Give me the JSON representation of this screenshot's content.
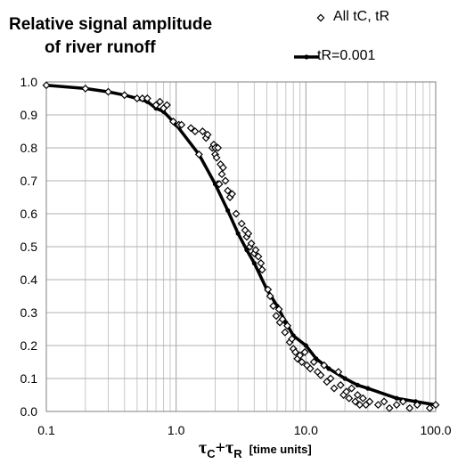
{
  "chart_data": {
    "type": "scatter",
    "title_lines": [
      "Relative signal amplitude",
      "of river runoff"
    ],
    "xlabel": {
      "symbol_1": "τ",
      "sub_1": "C",
      "plus": "+",
      "symbol_2": "τ",
      "sub_2": "R",
      "units": "[time units]"
    },
    "ylabel": "",
    "x_scale": "log",
    "xlim": [
      0.1,
      100
    ],
    "ylim": [
      0,
      1
    ],
    "grid": true,
    "legend_placement": "top-right",
    "x_tick_labels": [
      "0.1",
      "1.0",
      "10.0",
      "100.0"
    ],
    "x_ticks": [
      0.1,
      1,
      10,
      100
    ],
    "y_tick_labels": [
      "0.0",
      "0.1",
      "0.2",
      "0.3",
      "0.4",
      "0.5",
      "0.6",
      "0.7",
      "0.8",
      "0.9",
      "1.0"
    ],
    "y_ticks": [
      0,
      0.1,
      0.2,
      0.3,
      0.4,
      0.5,
      0.6,
      0.7,
      0.8,
      0.9,
      1.0
    ],
    "series": [
      {
        "name": "All tC, tR",
        "kind": "scatter",
        "marker": "open-diamond",
        "color": "#000000",
        "points": [
          [
            0.1,
            0.99
          ],
          [
            0.2,
            0.98
          ],
          [
            0.3,
            0.97
          ],
          [
            0.4,
            0.96
          ],
          [
            0.5,
            0.95
          ],
          [
            0.55,
            0.95
          ],
          [
            0.6,
            0.95
          ],
          [
            0.7,
            0.93
          ],
          [
            0.75,
            0.94
          ],
          [
            0.8,
            0.92
          ],
          [
            0.85,
            0.93
          ],
          [
            0.95,
            0.88
          ],
          [
            1.05,
            0.87
          ],
          [
            1.1,
            0.87
          ],
          [
            1.3,
            0.86
          ],
          [
            1.4,
            0.85
          ],
          [
            1.5,
            0.78
          ],
          [
            1.6,
            0.85
          ],
          [
            1.7,
            0.83
          ],
          [
            1.75,
            0.84
          ],
          [
            1.9,
            0.8
          ],
          [
            1.95,
            0.81
          ],
          [
            2.0,
            0.8
          ],
          [
            2.0,
            0.78
          ],
          [
            2.05,
            0.77
          ],
          [
            2.1,
            0.69
          ],
          [
            2.1,
            0.8
          ],
          [
            2.15,
            0.69
          ],
          [
            2.2,
            0.75
          ],
          [
            2.25,
            0.72
          ],
          [
            2.3,
            0.74
          ],
          [
            2.4,
            0.7
          ],
          [
            2.5,
            0.67
          ],
          [
            2.6,
            0.65
          ],
          [
            2.7,
            0.66
          ],
          [
            2.9,
            0.6
          ],
          [
            3.2,
            0.57
          ],
          [
            3.4,
            0.55
          ],
          [
            3.5,
            0.53
          ],
          [
            3.6,
            0.54
          ],
          [
            3.7,
            0.5
          ],
          [
            3.8,
            0.51
          ],
          [
            4.0,
            0.48
          ],
          [
            4.1,
            0.49
          ],
          [
            4.3,
            0.47
          ],
          [
            4.5,
            0.45
          ],
          [
            4.6,
            0.43
          ],
          [
            5.1,
            0.37
          ],
          [
            5.3,
            0.35
          ],
          [
            5.6,
            0.32
          ],
          [
            5.9,
            0.29
          ],
          [
            6.2,
            0.31
          ],
          [
            6.3,
            0.27
          ],
          [
            6.6,
            0.28
          ],
          [
            6.9,
            0.24
          ],
          [
            7.2,
            0.26
          ],
          [
            7.5,
            0.21
          ],
          [
            7.8,
            0.22
          ],
          [
            8.0,
            0.19
          ],
          [
            8.3,
            0.18
          ],
          [
            8.6,
            0.16
          ],
          [
            9.0,
            0.17
          ],
          [
            9.3,
            0.15
          ],
          [
            9.8,
            0.18
          ],
          [
            10.2,
            0.14
          ],
          [
            10.8,
            0.13
          ],
          [
            11.5,
            0.15
          ],
          [
            12.3,
            0.12
          ],
          [
            13.0,
            0.11
          ],
          [
            13.8,
            0.14
          ],
          [
            14.5,
            0.09
          ],
          [
            15.5,
            0.1
          ],
          [
            16.5,
            0.07
          ],
          [
            17.8,
            0.12
          ],
          [
            18.5,
            0.08
          ],
          [
            19.5,
            0.05
          ],
          [
            20.5,
            0.06
          ],
          [
            21.5,
            0.04
          ],
          [
            22.5,
            0.07
          ],
          [
            24.0,
            0.03
          ],
          [
            25.0,
            0.05
          ],
          [
            26.0,
            0.02
          ],
          [
            27.5,
            0.04
          ],
          [
            29.0,
            0.02
          ],
          [
            31.0,
            0.03
          ],
          [
            36.0,
            0.02
          ],
          [
            40.0,
            0.03
          ],
          [
            44.0,
            0.01
          ],
          [
            50.0,
            0.02
          ],
          [
            56.0,
            0.03
          ],
          [
            63.0,
            0.01
          ],
          [
            72.0,
            0.02
          ],
          [
            90.0,
            0.01
          ],
          [
            100.0,
            0.02
          ]
        ]
      },
      {
        "name": "tR=0.001",
        "kind": "line",
        "color": "#000000",
        "points": [
          [
            0.1,
            0.99
          ],
          [
            0.2,
            0.98
          ],
          [
            0.3,
            0.97
          ],
          [
            0.4,
            0.96
          ],
          [
            0.5,
            0.95
          ],
          [
            0.6,
            0.94
          ],
          [
            0.7,
            0.92
          ],
          [
            0.8,
            0.91
          ],
          [
            1.0,
            0.87
          ],
          [
            1.5,
            0.78
          ],
          [
            2.0,
            0.69
          ],
          [
            2.5,
            0.61
          ],
          [
            3.0,
            0.54
          ],
          [
            3.5,
            0.49
          ],
          [
            4.0,
            0.45
          ],
          [
            5.0,
            0.37
          ],
          [
            6.0,
            0.32
          ],
          [
            7.0,
            0.27
          ],
          [
            8.0,
            0.23
          ],
          [
            10.0,
            0.2
          ],
          [
            12.0,
            0.16
          ],
          [
            15.0,
            0.13
          ],
          [
            20.0,
            0.1
          ],
          [
            25.0,
            0.08
          ],
          [
            30.0,
            0.07
          ],
          [
            50.0,
            0.04
          ],
          [
            70.0,
            0.03
          ],
          [
            100.0,
            0.02
          ]
        ]
      }
    ]
  }
}
